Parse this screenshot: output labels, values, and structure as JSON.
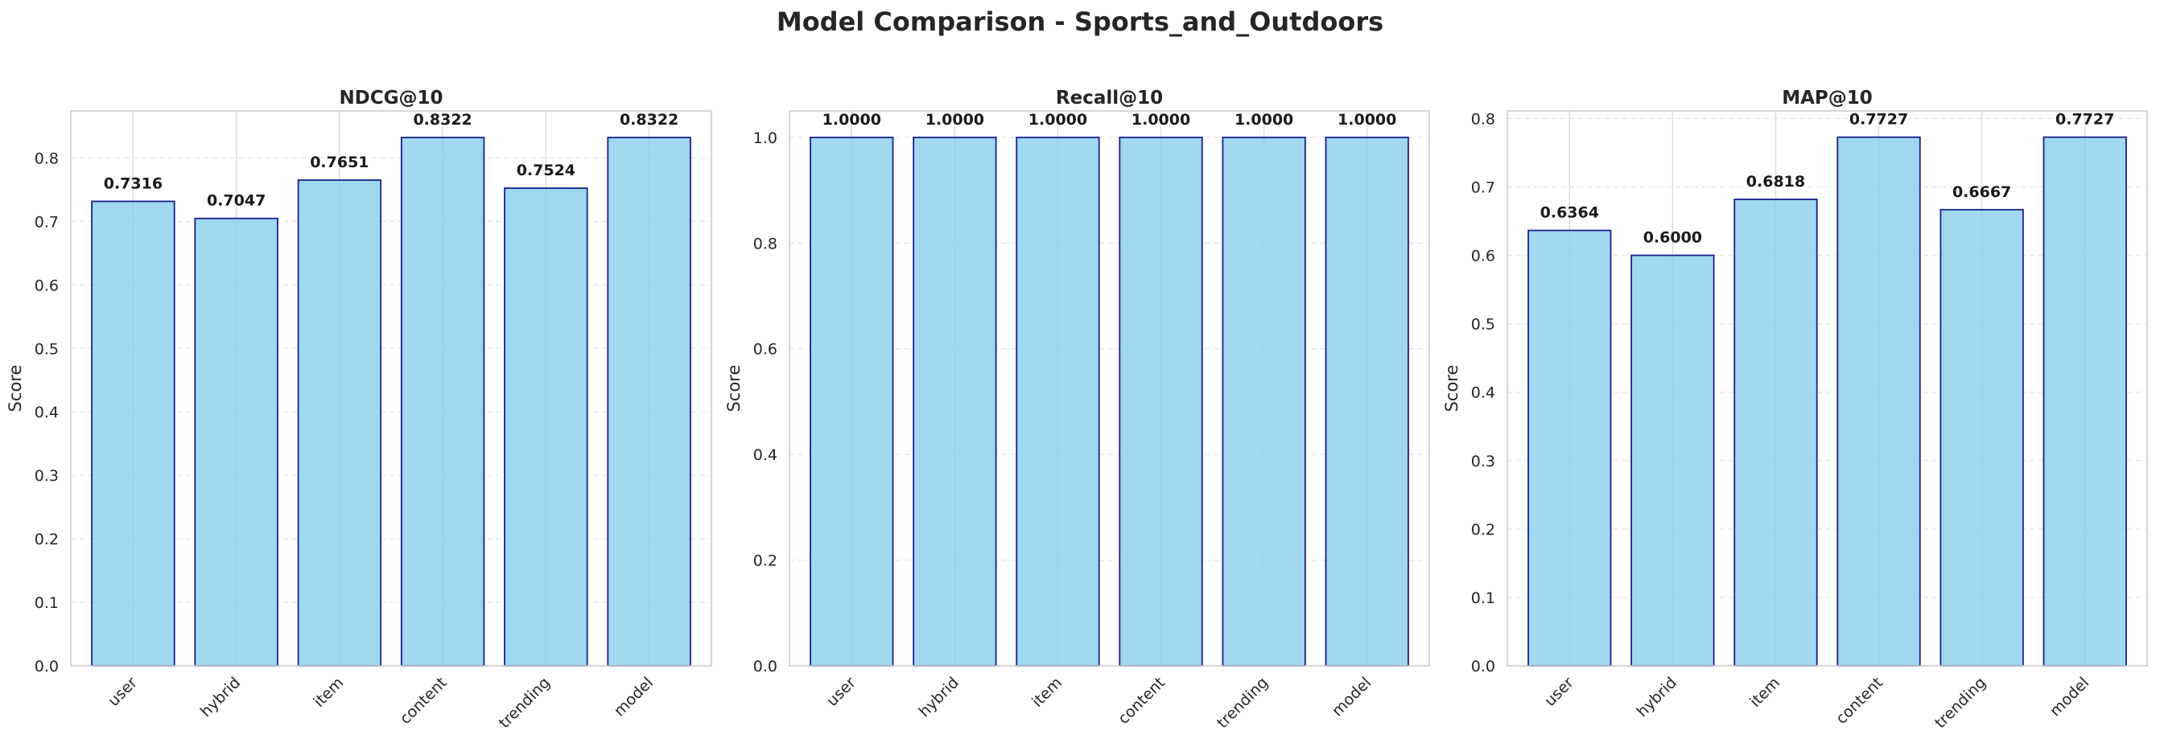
{
  "chart_title": "Model Comparison - Sports_and_Outdoors",
  "colors": {
    "bar_fill": "#87ceeb",
    "bar_edge": "#1a1f8c",
    "grid": "#e5e5e5",
    "axes": "#cccccc"
  },
  "chart_data": [
    {
      "type": "bar",
      "title": "NDCG@10",
      "ylabel": "Score",
      "xlabel": "",
      "categories": [
        "user",
        "hybrid",
        "item",
        "content",
        "trending",
        "model"
      ],
      "values": [
        0.7316,
        0.7047,
        0.7651,
        0.8322,
        0.7524,
        0.8322
      ],
      "value_labels": [
        "0.7316",
        "0.7047",
        "0.7651",
        "0.8322",
        "0.7524",
        "0.8322"
      ],
      "ylim": [
        0,
        0.874
      ],
      "yticks": [
        "0.0",
        "0.1",
        "0.2",
        "0.3",
        "0.4",
        "0.5",
        "0.6",
        "0.7",
        "0.8"
      ],
      "ytick_values": [
        0,
        0.1,
        0.2,
        0.3,
        0.4,
        0.5,
        0.6,
        0.7,
        0.8
      ],
      "grid": true
    },
    {
      "type": "bar",
      "title": "Recall@10",
      "ylabel": "Score",
      "xlabel": "",
      "categories": [
        "user",
        "hybrid",
        "item",
        "content",
        "trending",
        "model"
      ],
      "values": [
        1.0,
        1.0,
        1.0,
        1.0,
        1.0,
        1.0
      ],
      "value_labels": [
        "1.0000",
        "1.0000",
        "1.0000",
        "1.0000",
        "1.0000",
        "1.0000"
      ],
      "ylim": [
        0,
        1.05
      ],
      "yticks": [
        "0.0",
        "0.2",
        "0.4",
        "0.6",
        "0.8",
        "1.0"
      ],
      "ytick_values": [
        0,
        0.2,
        0.4,
        0.6,
        0.8,
        1.0
      ],
      "grid": true
    },
    {
      "type": "bar",
      "title": "MAP@10",
      "ylabel": "Score",
      "xlabel": "",
      "categories": [
        "user",
        "hybrid",
        "item",
        "content",
        "trending",
        "model"
      ],
      "values": [
        0.6364,
        0.6,
        0.6818,
        0.7727,
        0.6667,
        0.7727
      ],
      "value_labels": [
        "0.6364",
        "0.6000",
        "0.6818",
        "0.7727",
        "0.6667",
        "0.7727"
      ],
      "ylim": [
        0,
        0.811
      ],
      "yticks": [
        "0.0",
        "0.1",
        "0.2",
        "0.3",
        "0.4",
        "0.5",
        "0.6",
        "0.7",
        "0.8"
      ],
      "ytick_values": [
        0,
        0.1,
        0.2,
        0.3,
        0.4,
        0.5,
        0.6,
        0.7,
        0.8
      ],
      "grid": true
    }
  ]
}
